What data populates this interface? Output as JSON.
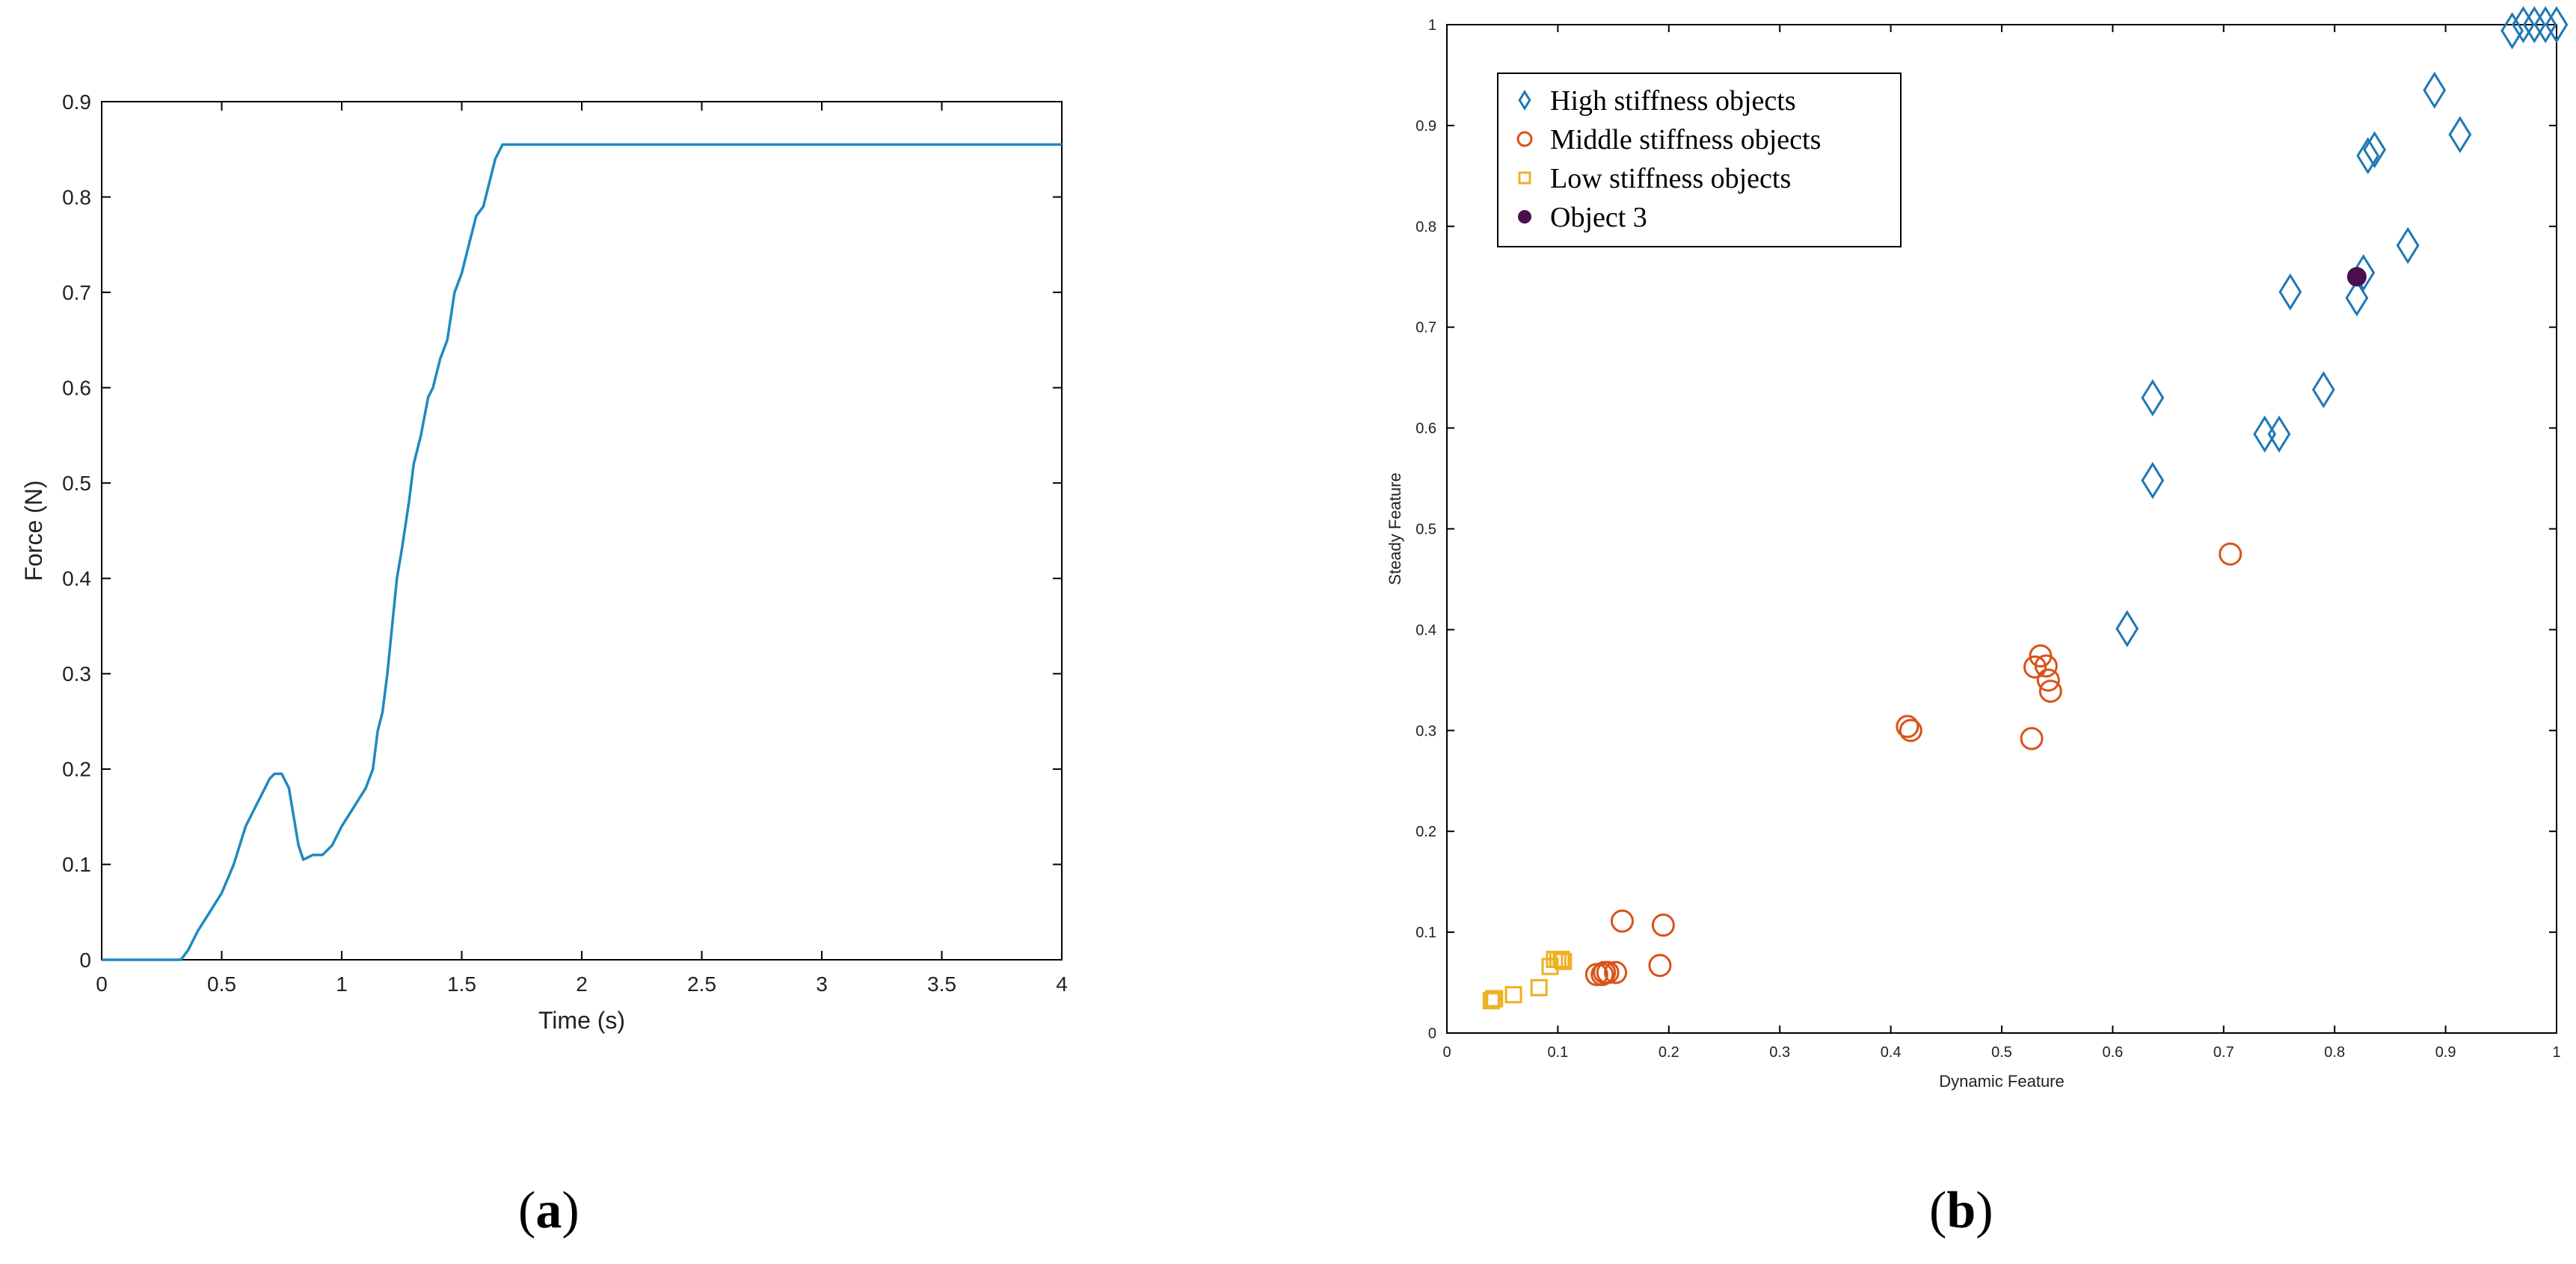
{
  "panel_labels": {
    "a": "a",
    "b": "b"
  },
  "chart_data": [
    {
      "id": "a",
      "type": "line",
      "title": "",
      "xlabel": "Time (s)",
      "ylabel": "Force (N)",
      "xlim": [
        0,
        4
      ],
      "ylim": [
        0,
        0.9
      ],
      "xticks": [
        0,
        0.5,
        1,
        1.5,
        2,
        2.5,
        3,
        3.5,
        4
      ],
      "xtick_labels": [
        "0",
        "0.5",
        "1",
        "1.5",
        "2",
        "2.5",
        "3",
        "3.5",
        "4"
      ],
      "yticks": [
        0,
        0.1,
        0.2,
        0.3,
        0.4,
        0.5,
        0.6,
        0.7,
        0.8,
        0.9
      ],
      "ytick_labels": [
        "0",
        "0.1",
        "0.2",
        "0.3",
        "0.4",
        "0.5",
        "0.6",
        "0.7",
        "0.8",
        "0.9"
      ],
      "grid": false,
      "line_color": "#1f8ac0",
      "series": [
        {
          "x": [
            0,
            0.2,
            0.33,
            0.36,
            0.4,
            0.45,
            0.5,
            0.55,
            0.6,
            0.64,
            0.68,
            0.7,
            0.72,
            0.75,
            0.78,
            0.8,
            0.82,
            0.84,
            0.88,
            0.92,
            0.96,
            1.0,
            1.05,
            1.1,
            1.13,
            1.15,
            1.17,
            1.19,
            1.21,
            1.23,
            1.25,
            1.28,
            1.3,
            1.33,
            1.36,
            1.38,
            1.41,
            1.44,
            1.47,
            1.5,
            1.53,
            1.56,
            1.59,
            1.62,
            1.64,
            1.67,
            2.0,
            3.0,
            4.0
          ],
          "y": [
            0,
            0,
            0,
            0.01,
            0.03,
            0.05,
            0.07,
            0.1,
            0.14,
            0.16,
            0.18,
            0.19,
            0.195,
            0.195,
            0.18,
            0.15,
            0.12,
            0.105,
            0.11,
            0.11,
            0.12,
            0.14,
            0.16,
            0.18,
            0.2,
            0.24,
            0.26,
            0.3,
            0.35,
            0.4,
            0.43,
            0.48,
            0.52,
            0.55,
            0.59,
            0.6,
            0.63,
            0.65,
            0.7,
            0.72,
            0.75,
            0.78,
            0.79,
            0.82,
            0.84,
            0.855,
            0.855,
            0.855,
            0.855
          ]
        }
      ]
    },
    {
      "id": "b",
      "type": "scatter",
      "title": "",
      "xlabel": "Dynamic Feature",
      "ylabel": "Steady Feature",
      "xlim": [
        0,
        1
      ],
      "ylim": [
        0,
        1
      ],
      "xticks": [
        0,
        0.1,
        0.2,
        0.3,
        0.4,
        0.5,
        0.6,
        0.7,
        0.8,
        0.9,
        1
      ],
      "xtick_labels": [
        "0",
        "0.1",
        "0.2",
        "0.3",
        "0.4",
        "0.5",
        "0.6",
        "0.7",
        "0.8",
        "0.9",
        "1"
      ],
      "yticks": [
        0,
        0.1,
        0.2,
        0.3,
        0.4,
        0.5,
        0.6,
        0.7,
        0.8,
        0.9,
        1
      ],
      "ytick_labels": [
        "0",
        "0.1",
        "0.2",
        "0.3",
        "0.4",
        "0.5",
        "0.6",
        "0.7",
        "0.8",
        "0.9",
        "1"
      ],
      "grid": false,
      "legend_position": "top-left",
      "series": [
        {
          "name": "High stiffness objects",
          "marker": "diamond",
          "color": "#1f77b4",
          "x": [
            0.613,
            0.636,
            0.636,
            0.737,
            0.75,
            0.76,
            0.79,
            0.82,
            0.826,
            0.83,
            0.836,
            0.866,
            0.89,
            0.913,
            0.96,
            0.97,
            0.98,
            0.99,
            1.0
          ],
          "y": [
            0.401,
            0.548,
            0.63,
            0.594,
            0.594,
            0.735,
            0.638,
            0.729,
            0.754,
            0.87,
            0.876,
            0.781,
            0.935,
            0.891,
            0.994,
            1.0,
            1.0,
            1.0,
            1.0
          ]
        },
        {
          "name": "Middle stiffness objects",
          "marker": "circle",
          "color": "#d95319",
          "x": [
            0.135,
            0.14,
            0.142,
            0.145,
            0.152,
            0.158,
            0.192,
            0.195,
            0.415,
            0.418,
            0.527,
            0.53,
            0.535,
            0.54,
            0.542,
            0.544,
            0.706
          ],
          "y": [
            0.058,
            0.058,
            0.06,
            0.06,
            0.06,
            0.111,
            0.067,
            0.107,
            0.304,
            0.3,
            0.292,
            0.363,
            0.374,
            0.364,
            0.35,
            0.339,
            0.475
          ]
        },
        {
          "name": "Low stiffness objects",
          "marker": "square",
          "color": "#edb120",
          "x": [
            0.04,
            0.042,
            0.043,
            0.06,
            0.083,
            0.093,
            0.097,
            0.1,
            0.103,
            0.105
          ],
          "y": [
            0.032,
            0.034,
            0.034,
            0.038,
            0.045,
            0.066,
            0.073,
            0.073,
            0.073,
            0.071
          ]
        },
        {
          "name": "Object 3",
          "marker": "filled-circle",
          "color": "#4b0f4f",
          "x": [
            0.82
          ],
          "y": [
            0.75
          ]
        }
      ]
    }
  ]
}
